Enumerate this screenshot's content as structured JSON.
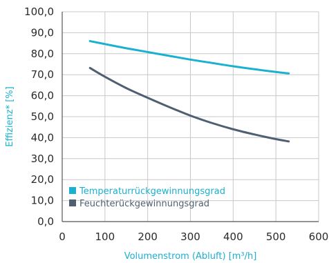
{
  "chart_data": {
    "type": "line",
    "title": "",
    "xlabel": "Volumenstrom (Abluft) [m³/h]",
    "ylabel": "Effizienz* [%]",
    "xlim": [
      0,
      600
    ],
    "ylim": [
      0,
      100
    ],
    "x_ticks": [
      0,
      100,
      200,
      300,
      400,
      500,
      600
    ],
    "x_tick_labels": [
      "0",
      "100",
      "200",
      "300",
      "400",
      "500",
      "600"
    ],
    "y_ticks": [
      0,
      10,
      20,
      30,
      40,
      50,
      60,
      70,
      80,
      90,
      100
    ],
    "y_tick_labels": [
      "0,0",
      "10,0",
      "20,0",
      "30,0",
      "40,0",
      "50,0",
      "60,0",
      "70,0",
      "80,0",
      "90,0",
      "100,0"
    ],
    "grid": true,
    "legend_position": "bottom-left",
    "series": [
      {
        "name": "Temperaturrückgewinnungsgrad",
        "color": "#1ab0cf",
        "x": [
          65,
          100,
          150,
          200,
          250,
          300,
          350,
          400,
          450,
          500,
          530
        ],
        "values": [
          86.0,
          84.6,
          82.6,
          80.8,
          79.0,
          77.2,
          75.6,
          74.0,
          72.6,
          71.3,
          70.6
        ]
      },
      {
        "name": "Feuchterückgewinnungsgrad",
        "color": "#4f5f72",
        "x": [
          65,
          100,
          150,
          200,
          250,
          300,
          350,
          400,
          450,
          500,
          530
        ],
        "values": [
          73.2,
          69.0,
          63.6,
          59.0,
          54.6,
          50.5,
          47.0,
          44.0,
          41.5,
          39.3,
          38.2
        ]
      }
    ]
  },
  "colors": {
    "grid": "#c8c8c8",
    "axis": "#555555",
    "tick_text": "#2a2a2a",
    "axis_title": "#1ab0cf",
    "legend_text_1": "#1ab0cf",
    "legend_text_2": "#4f5f72"
  }
}
